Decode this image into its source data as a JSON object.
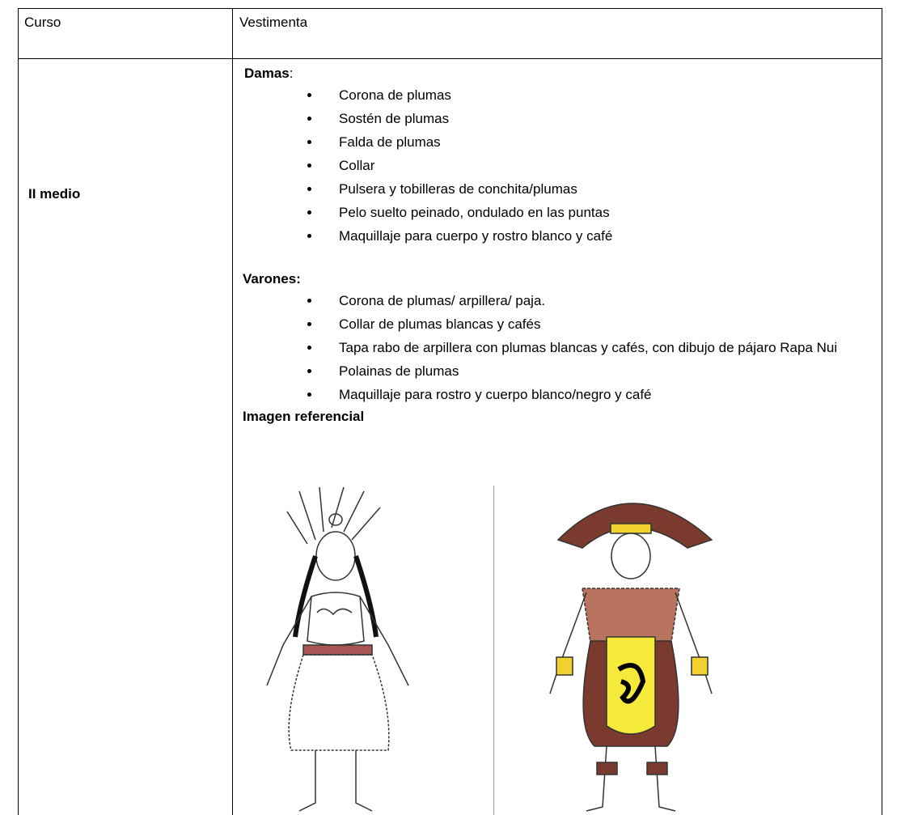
{
  "table": {
    "header": [
      "Curso",
      "Vestimenta"
    ],
    "rows": [
      {
        "course": "II medio",
        "sections": [
          {
            "title": "Damas",
            "suffix": ":",
            "items": [
              "Corona de plumas",
              "Sostén de plumas",
              "Falda de plumas",
              "Collar",
              "Pulsera y tobilleras de conchita/plumas",
              "Pelo suelto peinado, ondulado en las puntas",
              "Maquillaje para cuerpo y rostro blanco y café"
            ]
          },
          {
            "title": "Varones:",
            "items": [
              "Corona de plumas/ arpillera/ paja.",
              "Collar de plumas blancas y cafés",
              "Tapa rabo de arpillera con plumas blancas y cafés, con dibujo de pájaro Rapa Nui",
              "Polainas de plumas",
              "Maquillaje para rostro y cuerpo blanco/negro y café"
            ]
          }
        ],
        "image_caption": "Imagen referencial"
      }
    ]
  }
}
